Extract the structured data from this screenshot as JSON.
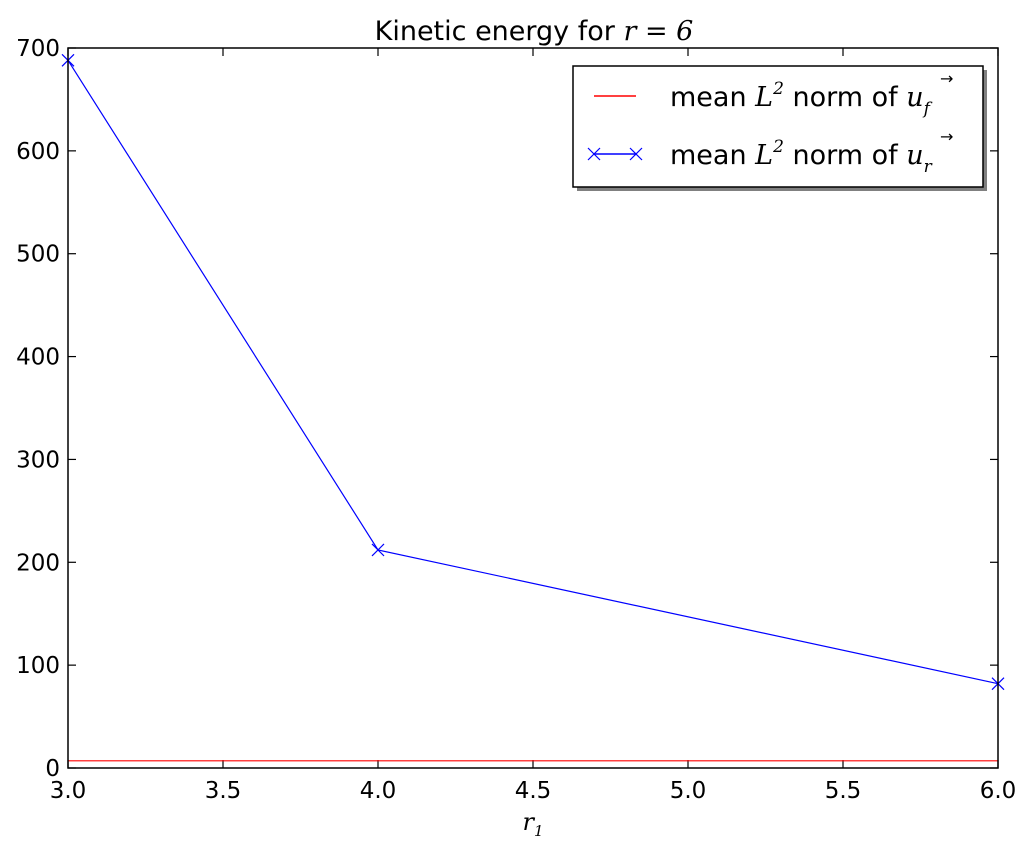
{
  "chart_data": {
    "type": "line",
    "title_prefix": "Kinetic energy for ",
    "title_math_var": "r",
    "title_math_eq": " = ",
    "title_math_val": "6",
    "xlabel_var": "r",
    "xlabel_sub": "1",
    "ylabel": "",
    "xlim": [
      3.0,
      6.0
    ],
    "ylim": [
      0,
      700
    ],
    "x_ticks": [
      3.0,
      3.5,
      4.0,
      4.5,
      5.0,
      5.5,
      6.0
    ],
    "x_tick_labels": [
      "3.0",
      "3.5",
      "4.0",
      "4.5",
      "5.0",
      "5.5",
      "6.0"
    ],
    "y_ticks": [
      0,
      100,
      200,
      300,
      400,
      500,
      600,
      700
    ],
    "y_tick_labels": [
      "0",
      "100",
      "200",
      "300",
      "400",
      "500",
      "600",
      "700"
    ],
    "grid": false,
    "legend_position": "top-right",
    "series": [
      {
        "name_prefix": "mean ",
        "name_math": "L",
        "name_sup": "2",
        "name_mid": "  norm of ",
        "name_vec": "u",
        "name_sub": "f",
        "color": "#ff0000",
        "marker": "none",
        "x": [
          3.0,
          6.0
        ],
        "y": [
          7,
          7
        ]
      },
      {
        "name_prefix": "mean ",
        "name_math": "L",
        "name_sup": "2",
        "name_mid": "  norm of ",
        "name_vec": "u",
        "name_sub": "r",
        "color": "#0000ff",
        "marker": "x",
        "x": [
          3.0,
          4.0,
          6.0
        ],
        "y": [
          688,
          212,
          82
        ]
      }
    ]
  }
}
